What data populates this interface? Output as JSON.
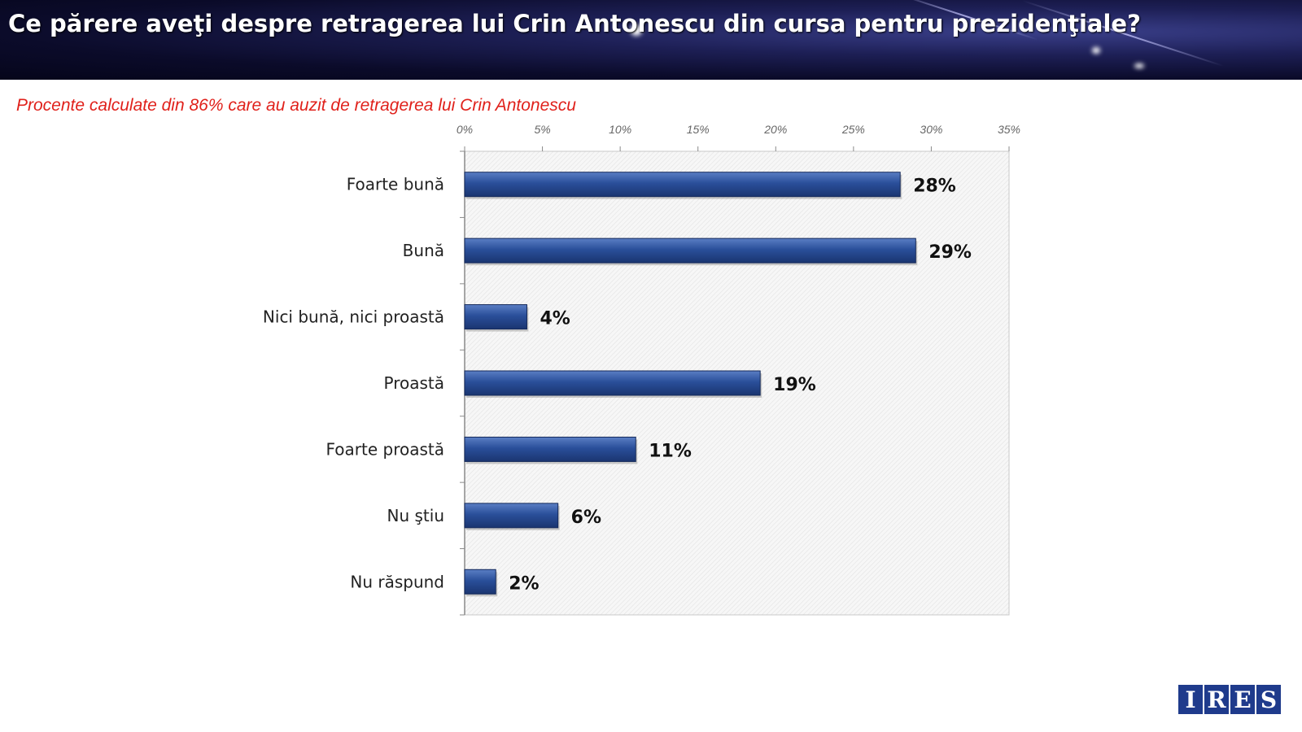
{
  "header": {
    "title": "Ce părere aveţi despre retragerea lui Crin Antonescu din cursa pentru prezidenţiale?",
    "subtitle": "Procente calculate din 86% care au auzit de retragerea lui Crin Antonescu"
  },
  "chart_data": {
    "type": "bar",
    "orientation": "horizontal",
    "categories": [
      "Foarte bună",
      "Bună",
      "Nici bună, nici proastă",
      "Proastă",
      "Foarte proastă",
      "Nu ştiu",
      "Nu răspund"
    ],
    "values": [
      28,
      29,
      4,
      19,
      11,
      6,
      2
    ],
    "value_labels": [
      "28%",
      "29%",
      "4%",
      "19%",
      "11%",
      "6%",
      "2%"
    ],
    "xlim": [
      0,
      35
    ],
    "xticks": [
      0,
      5,
      10,
      15,
      20,
      25,
      30,
      35
    ],
    "xtick_labels": [
      "0%",
      "5%",
      "10%",
      "15%",
      "20%",
      "25%",
      "30%",
      "35%"
    ],
    "axis_position": "top",
    "bar_color": "#2a4f9a"
  },
  "logo": {
    "letters": [
      "I",
      "R",
      "E",
      "S"
    ]
  }
}
